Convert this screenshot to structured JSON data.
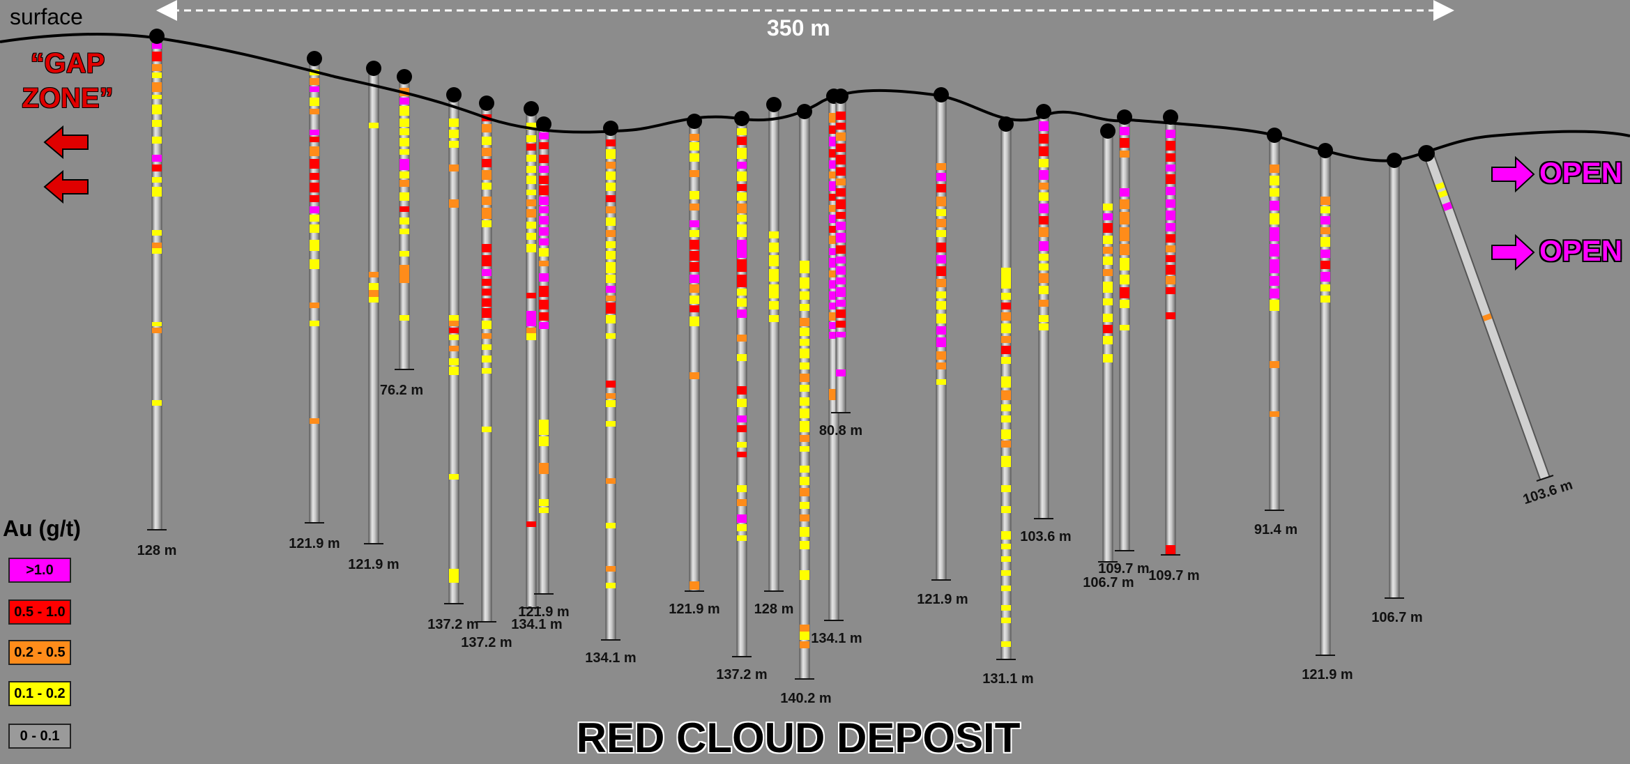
{
  "labels": {
    "surface": "surface",
    "scale": "350 m",
    "gap_zone_line1": "“GAP",
    "gap_zone_line2": "ZONE”",
    "open_1": "OPEN",
    "open_2": "OPEN",
    "title": "RED CLOUD DEPOSIT"
  },
  "legend": {
    "title": "Au (g/t)",
    "items": [
      {
        "label": ">1.0",
        "color": "#ff00ff"
      },
      {
        "label": "0.5 - 1.0",
        "color": "#ff0000"
      },
      {
        "label": "0.2 - 0.5",
        "color": "#ff8c1a"
      },
      {
        "label": "0.1 - 0.2",
        "color": "#ffff00"
      },
      {
        "label": "0 - 0.1",
        "color": "#9a9a9a"
      }
    ]
  },
  "colors": {
    "background": "#8c8c8c",
    "m": "#ff00ff",
    "r": "#ff0000",
    "o": "#ff8c1a",
    "y": "#ffff00"
  },
  "drillholes": [
    {
      "label": "128 m"
    },
    {
      "label": "121.9 m"
    },
    {
      "label": "121.9 m"
    },
    {
      "label": "76.2 m"
    },
    {
      "label": "137.2 m"
    },
    {
      "label": "137.2 m"
    },
    {
      "label": "134.1 m"
    },
    {
      "label": "121.9 m"
    },
    {
      "label": "134.1 m"
    },
    {
      "label": "121.9 m"
    },
    {
      "label": "137.2 m"
    },
    {
      "label": "128 m"
    },
    {
      "label": "140.2 m"
    },
    {
      "label": "134.1 m"
    },
    {
      "label": "80.8 m"
    },
    {
      "label": "121.9 m"
    },
    {
      "label": "131.1 m"
    },
    {
      "label": "103.6 m"
    },
    {
      "label": "106.7 m"
    },
    {
      "label": "109.7 m"
    },
    {
      "label": "109.7 m"
    },
    {
      "label": "91.4 m"
    },
    {
      "label": "121.9 m"
    },
    {
      "label": "106.7 m"
    },
    {
      "label": "103.6 m"
    }
  ]
}
